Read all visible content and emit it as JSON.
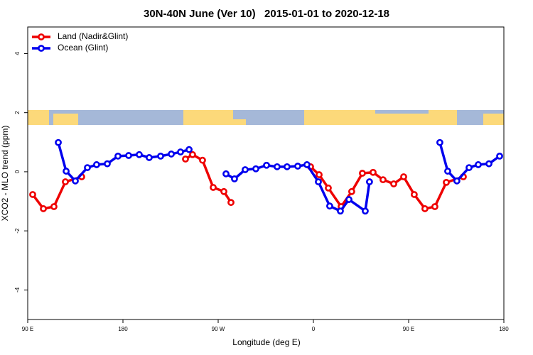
{
  "chart_data": {
    "type": "line",
    "title": "30N-40N June (Ver 10)   2015-01-01 to 2020-12-18",
    "x_label": "Longitude (deg E)",
    "y_label": "XCO2 - MLO trend (ppm)",
    "xlim": [
      90,
      540
    ],
    "xticks": [
      {
        "value": 90,
        "label": "90 E"
      },
      {
        "value": 180,
        "label": "180"
      },
      {
        "value": 270,
        "label": "90 W"
      },
      {
        "value": 360,
        "label": "0"
      },
      {
        "value": 450,
        "label": "90 E"
      },
      {
        "value": 540,
        "label": "180"
      }
    ],
    "ylim": [
      -5,
      4.9
    ],
    "yticks": [
      -4,
      -2,
      0,
      2,
      4
    ],
    "legend": "top-left",
    "series": [
      {
        "name": "Land (Nadir&Glint)",
        "color": "#ee0000",
        "x": [
          94.7,
          104.8,
          114.8,
          125.6,
          141.0,
          null,
          239.1,
          245.8,
          255.2,
          265.3,
          275.4,
          282.1,
          null,
          357.3,
          365.4,
          374.1,
          386.2,
          396.2,
          406.3,
          416.4,
          425.8,
          435.9,
          445.3,
          455.3,
          465.4,
          474.8,
          485.6,
          501.7
        ],
        "values": [
          -0.77,
          -1.25,
          -1.18,
          -0.34,
          -0.17,
          null,
          0.43,
          0.58,
          0.39,
          -0.53,
          -0.67,
          -1.04,
          null,
          0.17,
          -0.1,
          -0.55,
          -1.18,
          -0.67,
          -0.05,
          -0.02,
          -0.27,
          -0.41,
          -0.17,
          -0.77,
          -1.25,
          -1.18,
          -0.36,
          -0.17
        ]
      },
      {
        "name": "Ocean (Glint)",
        "color": "#0000ee",
        "x": [
          118.9,
          126.3,
          135.0,
          146.4,
          155.1,
          165.2,
          175.3,
          185.4,
          195.4,
          204.8,
          215.6,
          225.7,
          234.4,
          242.5,
          null,
          277.4,
          285.4,
          295.5,
          305.6,
          315.7,
          325.7,
          335.1,
          345.2,
          353.9,
          364.7,
          375.4,
          385.5,
          393.6,
          409.0,
          413.0,
          null,
          479.5,
          486.9,
          495.6,
          507.1,
          515.8,
          525.9,
          536.0
        ],
        "values": [
          0.99,
          0.02,
          -0.31,
          0.14,
          0.24,
          0.27,
          0.53,
          0.55,
          0.58,
          0.48,
          0.53,
          0.6,
          0.67,
          0.75,
          null,
          -0.07,
          -0.24,
          0.07,
          0.1,
          0.22,
          0.17,
          0.17,
          0.19,
          0.24,
          -0.34,
          -1.16,
          -1.33,
          -0.94,
          -1.33,
          -0.34,
          null,
          0.99,
          0.02,
          -0.31,
          0.14,
          0.24,
          0.27,
          0.53
        ]
      }
    ]
  }
}
